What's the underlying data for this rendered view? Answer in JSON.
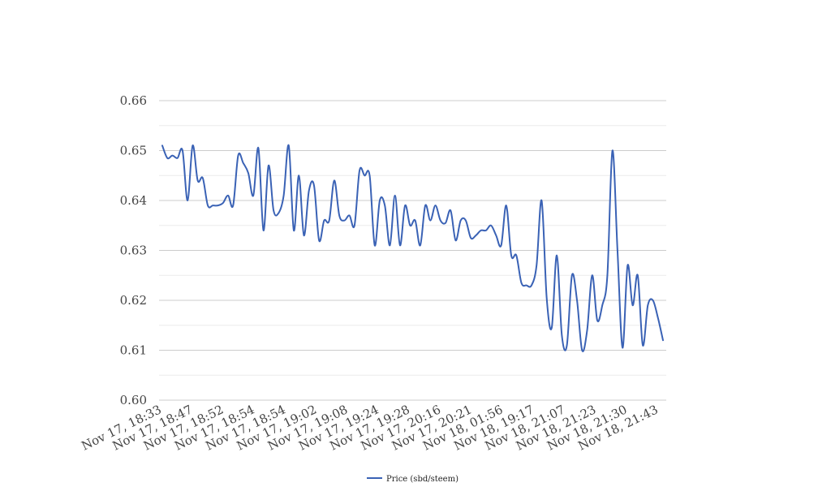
{
  "chart_data": {
    "type": "line",
    "title": "",
    "xlabel": "",
    "ylabel": "",
    "ylim": [
      0.6,
      0.66
    ],
    "y_ticks": [
      "0.60",
      "0.61",
      "0.62",
      "0.63",
      "0.64",
      "0.65",
      "0.66"
    ],
    "x_tick_labels": [
      "Nov 17, 18:33",
      "Nov 17, 18:47",
      "Nov 17, 18:52",
      "Nov 17, 18:54",
      "Nov 17, 18:54",
      "Nov 17, 19:02",
      "Nov 17, 19:08",
      "Nov 17, 19:24",
      "Nov 17, 19:28",
      "Nov 17, 20:16",
      "Nov 17, 20:21",
      "Nov 18, 01:56",
      "Nov 18, 19:17",
      "Nov 18, 21:07",
      "Nov 18, 21:23",
      "Nov 18, 21:30",
      "Nov 18, 21:43"
    ],
    "grid": true,
    "legend_position": "bottom-center",
    "series": [
      {
        "name": "Price (sbd/steem)",
        "color": "#3a62b5",
        "values": [
          0.651,
          0.6485,
          0.649,
          0.6485,
          0.65,
          0.64,
          0.651,
          0.644,
          0.6445,
          0.639,
          0.639,
          0.639,
          0.6395,
          0.641,
          0.639,
          0.649,
          0.6475,
          0.6455,
          0.641,
          0.6505,
          0.634,
          0.647,
          0.638,
          0.6375,
          0.641,
          0.651,
          0.634,
          0.645,
          0.633,
          0.642,
          0.643,
          0.632,
          0.636,
          0.636,
          0.644,
          0.637,
          0.636,
          0.637,
          0.635,
          0.646,
          0.645,
          0.645,
          0.631,
          0.64,
          0.639,
          0.631,
          0.641,
          0.631,
          0.639,
          0.635,
          0.636,
          0.631,
          0.639,
          0.636,
          0.639,
          0.636,
          0.6355,
          0.638,
          0.632,
          0.636,
          0.636,
          0.6325,
          0.633,
          0.634,
          0.634,
          0.635,
          0.633,
          0.631,
          0.639,
          0.629,
          0.629,
          0.6235,
          0.623,
          0.623,
          0.627,
          0.64,
          0.6205,
          0.6145,
          0.629,
          0.613,
          0.611,
          0.625,
          0.62,
          0.61,
          0.614,
          0.625,
          0.616,
          0.619,
          0.625,
          0.65,
          0.63,
          0.6105,
          0.627,
          0.619,
          0.625,
          0.611,
          0.619,
          0.62,
          0.6165,
          0.612
        ]
      }
    ]
  }
}
